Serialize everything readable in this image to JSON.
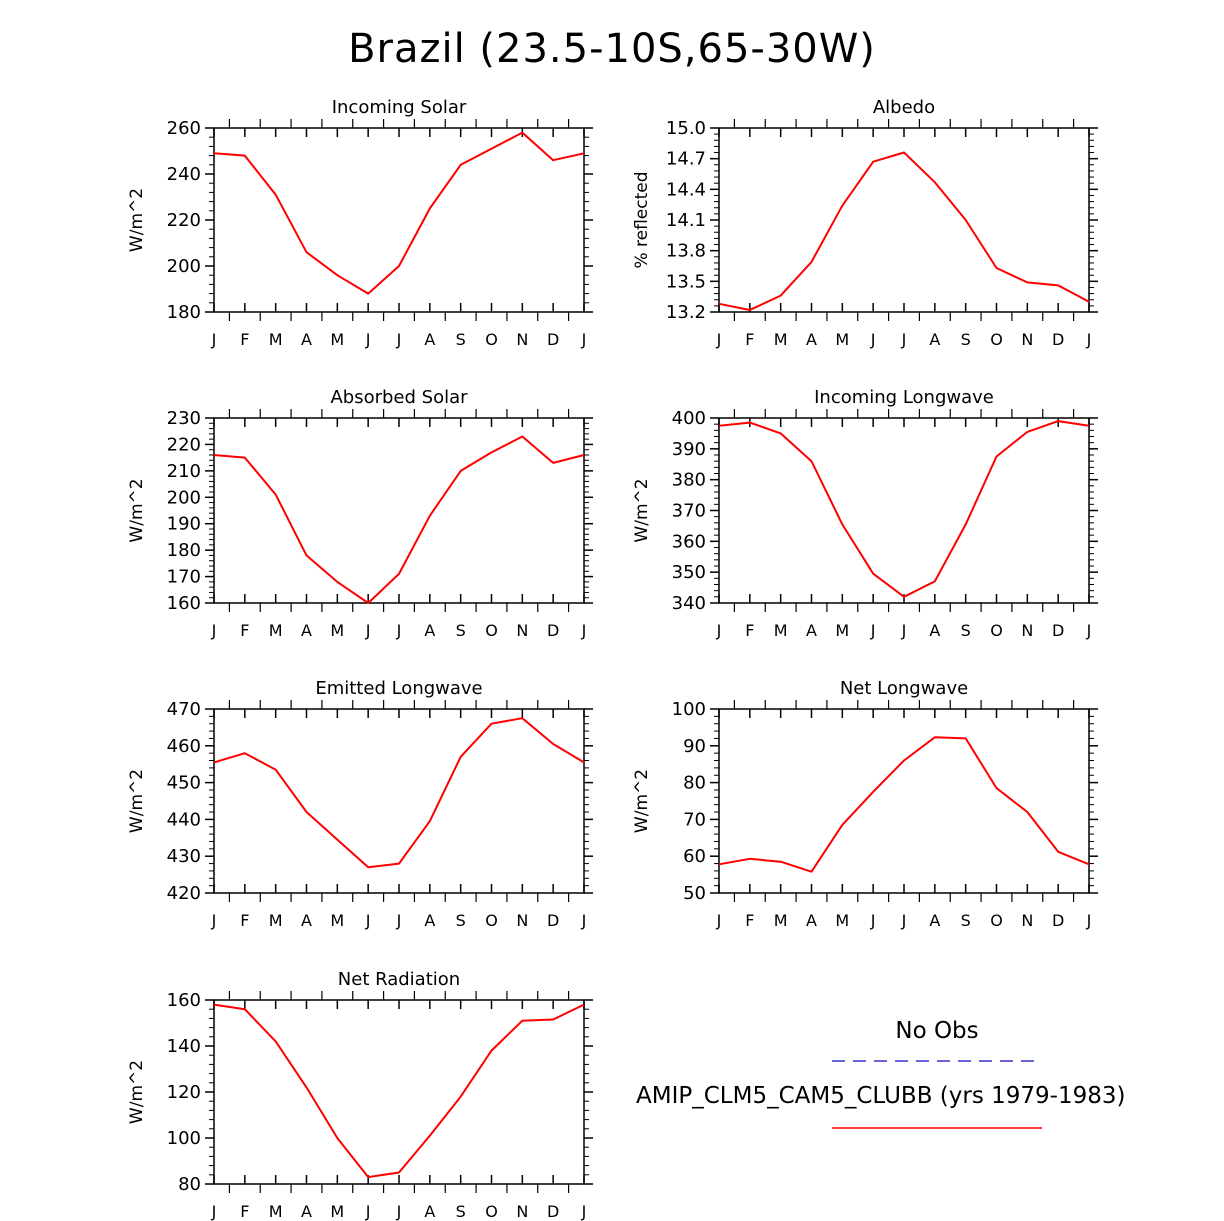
{
  "title": "Brazil (23.5-10S,65-30W)",
  "months": [
    "J",
    "F",
    "M",
    "A",
    "M",
    "J",
    "J",
    "A",
    "S",
    "O",
    "N",
    "D",
    "J"
  ],
  "legend": {
    "obs_label": "No Obs",
    "obs_color": "#3333cc",
    "model_label": "AMIP_CLM5_CAM5_CLUBB (yrs 1979-1983)",
    "model_color": "#ff0000"
  },
  "chart_data": [
    {
      "type": "line",
      "title": "Incoming Solar",
      "ylabel": "W/m^2",
      "ylim": [
        180,
        260
      ],
      "yticks": [
        180,
        200,
        220,
        240,
        260
      ],
      "ytick_labels": [
        "180",
        "200",
        "220",
        "240",
        "260"
      ],
      "categories": [
        "J",
        "F",
        "M",
        "A",
        "M",
        "J",
        "J",
        "A",
        "S",
        "O",
        "N",
        "D",
        "J"
      ],
      "series": [
        {
          "name": "AMIP_CLM5_CAM5_CLUBB (yrs 1979-1983)",
          "values": [
            249,
            248,
            231,
            206,
            196,
            188,
            200,
            225,
            244,
            251,
            258,
            246,
            249
          ]
        }
      ]
    },
    {
      "type": "line",
      "title": "Albedo",
      "ylabel": "% reflected",
      "ylim": [
        13.2,
        15.0
      ],
      "yticks": [
        13.2,
        13.5,
        13.8,
        14.1,
        14.4,
        14.7,
        15.0
      ],
      "ytick_labels": [
        "13.2",
        "13.5",
        "13.8",
        "14.1",
        "14.4",
        "14.7",
        "15.0"
      ],
      "categories": [
        "J",
        "F",
        "M",
        "A",
        "M",
        "J",
        "J",
        "A",
        "S",
        "O",
        "N",
        "D",
        "J"
      ],
      "series": [
        {
          "name": "AMIP_CLM5_CAM5_CLUBB (yrs 1979-1983)",
          "values": [
            13.28,
            13.22,
            13.36,
            13.69,
            14.24,
            14.67,
            14.76,
            14.47,
            14.1,
            13.63,
            13.49,
            13.46,
            13.3
          ]
        }
      ]
    },
    {
      "type": "line",
      "title": "Absorbed Solar",
      "ylabel": "W/m^2",
      "ylim": [
        160,
        230
      ],
      "yticks": [
        160,
        170,
        180,
        190,
        200,
        210,
        220,
        230
      ],
      "ytick_labels": [
        "160",
        "170",
        "180",
        "190",
        "200",
        "210",
        "220",
        "230"
      ],
      "categories": [
        "J",
        "F",
        "M",
        "A",
        "M",
        "J",
        "J",
        "A",
        "S",
        "O",
        "N",
        "D",
        "J"
      ],
      "series": [
        {
          "name": "AMIP_CLM5_CAM5_CLUBB (yrs 1979-1983)",
          "values": [
            216,
            215,
            201,
            178,
            168,
            160,
            171,
            193,
            210,
            217,
            223,
            213,
            216
          ]
        }
      ]
    },
    {
      "type": "line",
      "title": "Incoming Longwave",
      "ylabel": "W/m^2",
      "ylim": [
        340,
        400
      ],
      "yticks": [
        340,
        350,
        360,
        370,
        380,
        390,
        400
      ],
      "ytick_labels": [
        "340",
        "350",
        "360",
        "370",
        "380",
        "390",
        "400"
      ],
      "categories": [
        "J",
        "F",
        "M",
        "A",
        "M",
        "J",
        "J",
        "A",
        "S",
        "O",
        "N",
        "D",
        "J"
      ],
      "series": [
        {
          "name": "AMIP_CLM5_CAM5_CLUBB (yrs 1979-1983)",
          "values": [
            397.5,
            398.5,
            395,
            386,
            365.5,
            349.5,
            342,
            347,
            365.5,
            387.5,
            395.5,
            399,
            397.5
          ]
        }
      ]
    },
    {
      "type": "line",
      "title": "Emitted Longwave",
      "ylabel": "W/m^2",
      "ylim": [
        420,
        470
      ],
      "yticks": [
        420,
        430,
        440,
        450,
        460,
        470
      ],
      "ytick_labels": [
        "420",
        "430",
        "440",
        "450",
        "460",
        "470"
      ],
      "categories": [
        "J",
        "F",
        "M",
        "A",
        "M",
        "J",
        "J",
        "A",
        "S",
        "O",
        "N",
        "D",
        "J"
      ],
      "series": [
        {
          "name": "AMIP_CLM5_CAM5_CLUBB (yrs 1979-1983)",
          "values": [
            455.5,
            458,
            453.5,
            442,
            434.5,
            427,
            428,
            439.5,
            457,
            466,
            467.5,
            460.5,
            455.5
          ]
        }
      ]
    },
    {
      "type": "line",
      "title": "Net Longwave",
      "ylabel": "W/m^2",
      "ylim": [
        50,
        100
      ],
      "yticks": [
        50,
        60,
        70,
        80,
        90,
        100
      ],
      "ytick_labels": [
        "50",
        "60",
        "70",
        "80",
        "90",
        "100"
      ],
      "categories": [
        "J",
        "F",
        "M",
        "A",
        "M",
        "J",
        "J",
        "A",
        "S",
        "O",
        "N",
        "D",
        "J"
      ],
      "series": [
        {
          "name": "AMIP_CLM5_CAM5_CLUBB (yrs 1979-1983)",
          "values": [
            57.8,
            59.3,
            58.5,
            55.8,
            68.5,
            77.5,
            86,
            92.3,
            92,
            78.5,
            72,
            61.2,
            57.8
          ]
        }
      ]
    },
    {
      "type": "line",
      "title": "Net Radiation",
      "ylabel": "W/m^2",
      "ylim": [
        80,
        160
      ],
      "yticks": [
        80,
        100,
        120,
        140,
        160
      ],
      "ytick_labels": [
        "80",
        "100",
        "120",
        "140",
        "160"
      ],
      "categories": [
        "J",
        "F",
        "M",
        "A",
        "M",
        "J",
        "J",
        "A",
        "S",
        "O",
        "N",
        "D",
        "J"
      ],
      "series": [
        {
          "name": "AMIP_CLM5_CAM5_CLUBB (yrs 1979-1983)",
          "values": [
            158,
            156,
            142,
            122,
            100,
            83,
            85,
            101,
            118,
            138,
            151,
            151.5,
            158
          ]
        }
      ]
    }
  ]
}
